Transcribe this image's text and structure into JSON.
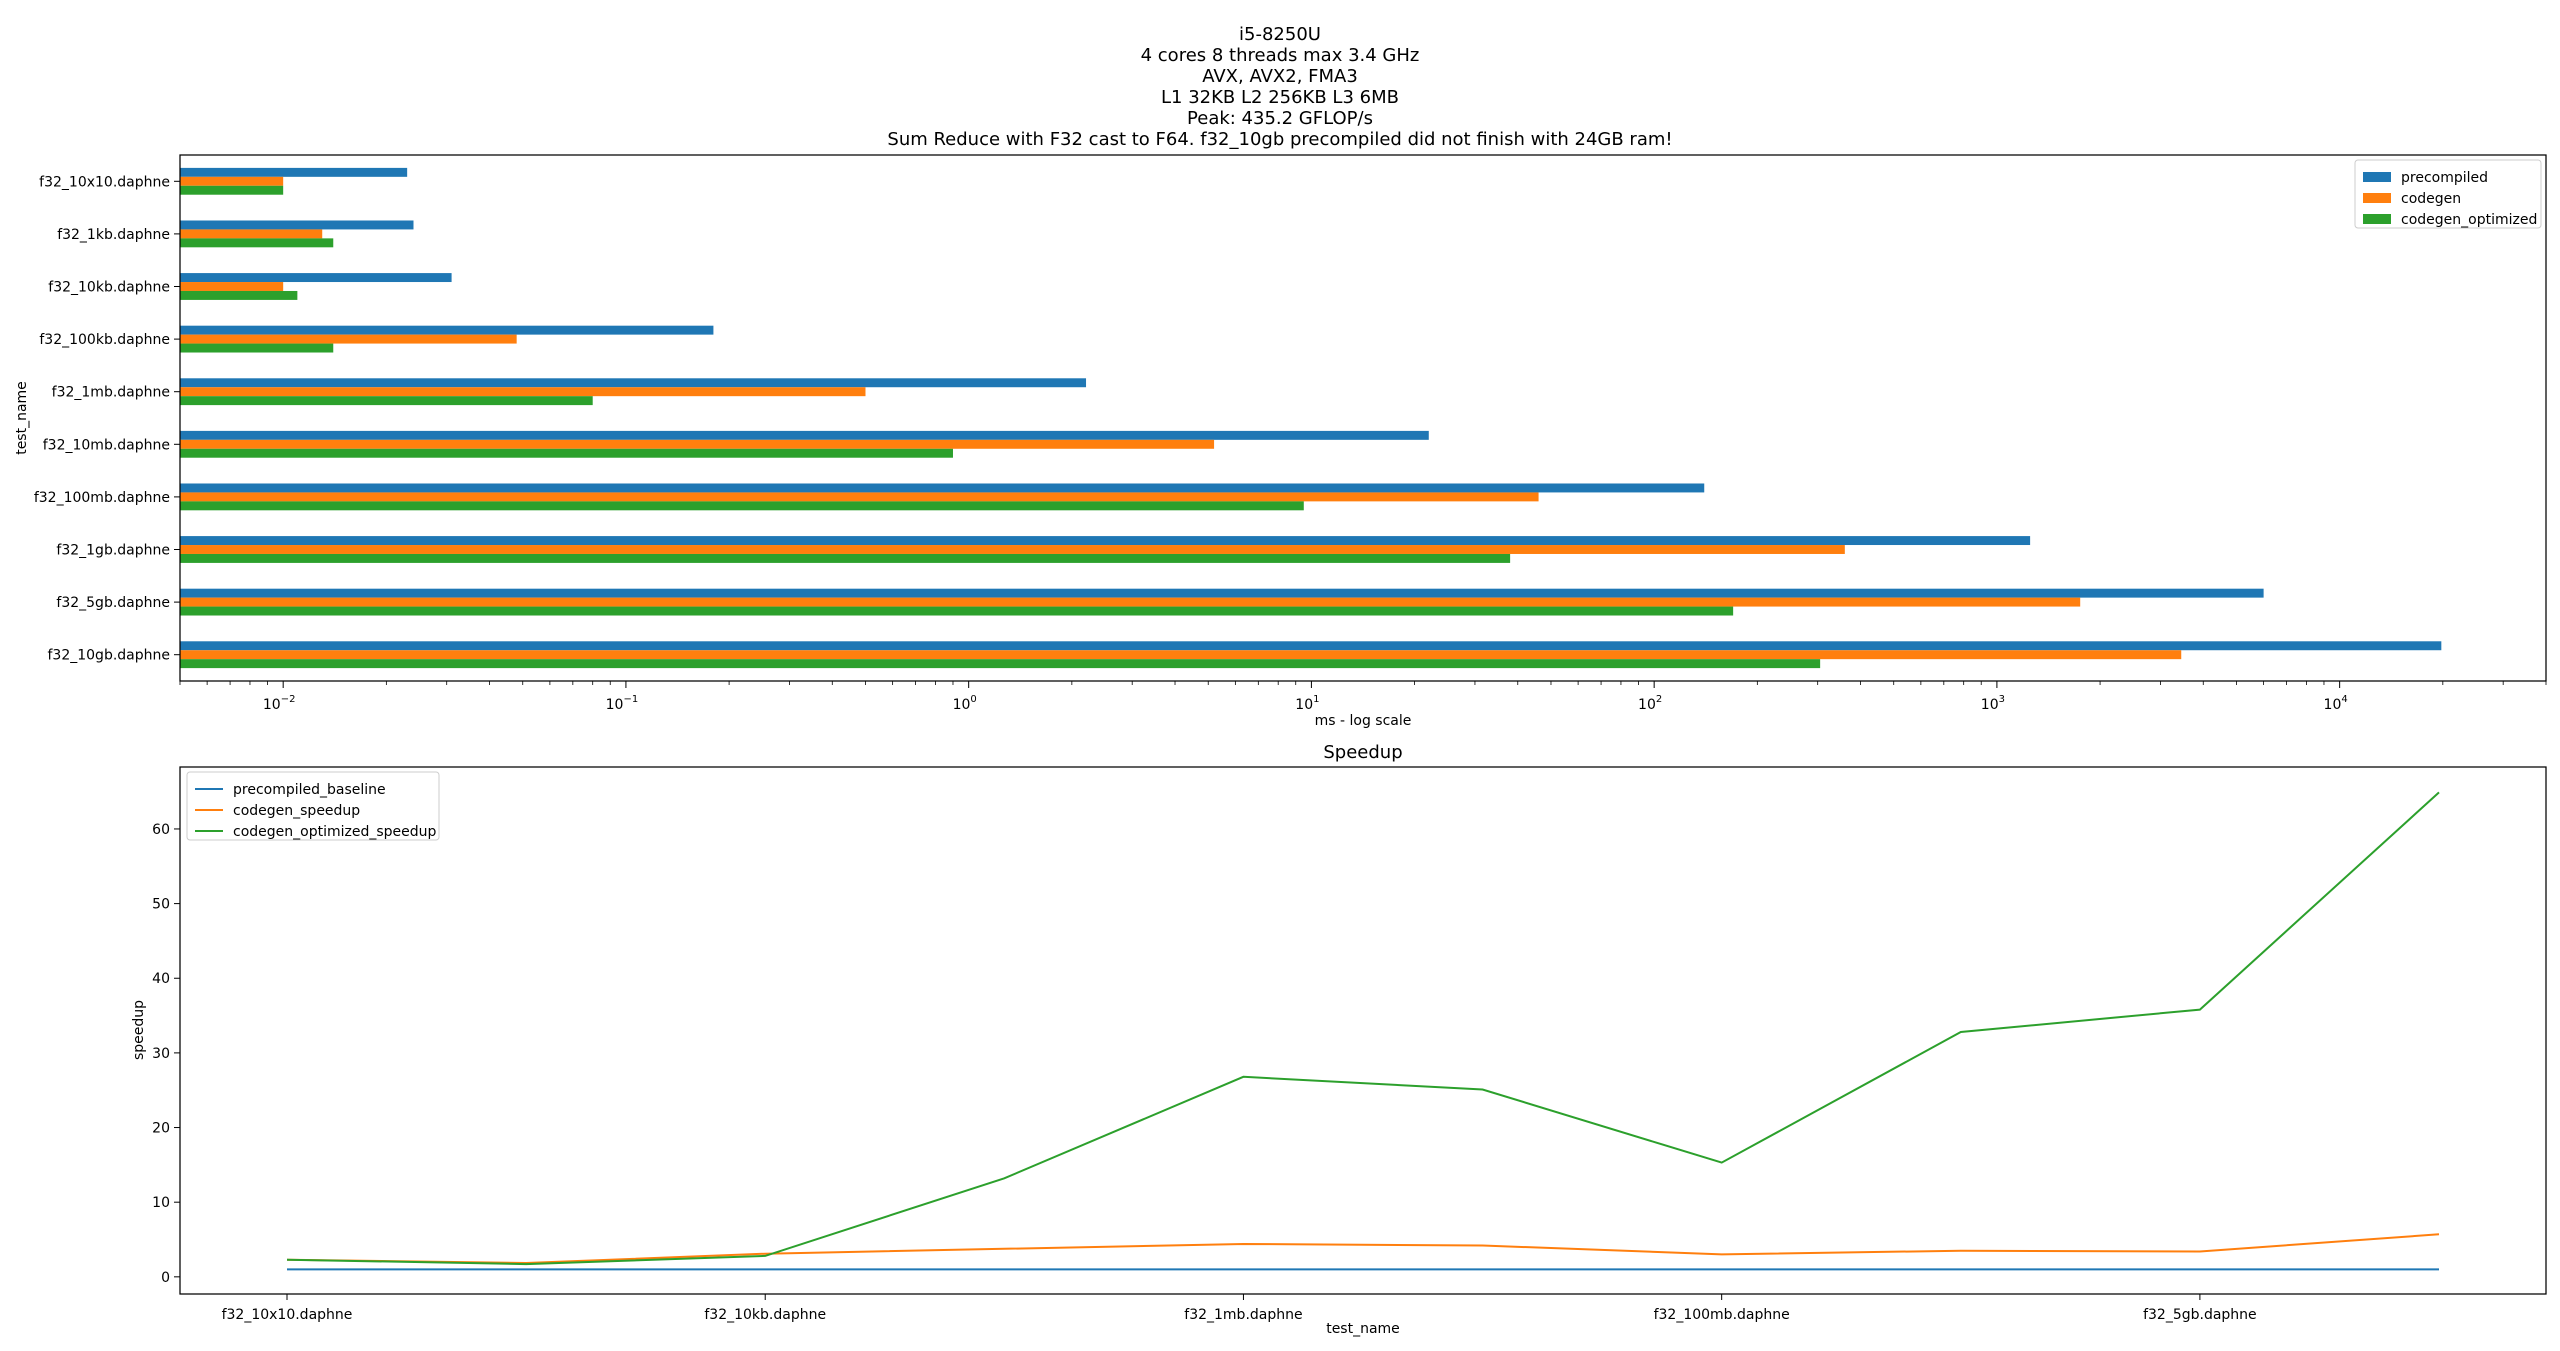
{
  "chart_data": [
    {
      "type": "bar",
      "orientation": "horizontal",
      "title_lines": [
        "i5-8250U",
        "4 cores 8 threads max 3.4 GHz",
        "AVX, AVX2, FMA3",
        "L1 32KB L2 256KB L3 6MB",
        "Peak: 435.2 GFLOP/s",
        "Sum Reduce with F32 cast to F64. f32_10gb precompiled did not finish with 24GB ram!"
      ],
      "xlabel": "ms - log scale",
      "ylabel": "test_name",
      "xscale": "log",
      "xlim": [
        0.005,
        40000
      ],
      "xticks": [
        {
          "value": 0.01,
          "base": "10",
          "exp": "−2"
        },
        {
          "value": 0.1,
          "base": "10",
          "exp": "−1"
        },
        {
          "value": 1,
          "base": "10",
          "exp": "0"
        },
        {
          "value": 10,
          "base": "10",
          "exp": "1"
        },
        {
          "value": 100,
          "base": "10",
          "exp": "2"
        },
        {
          "value": 1000,
          "base": "10",
          "exp": "3"
        },
        {
          "value": 10000,
          "base": "10",
          "exp": "4"
        }
      ],
      "categories": [
        "f32_10x10.daphne",
        "f32_1kb.daphne",
        "f32_10kb.daphne",
        "f32_100kb.daphne",
        "f32_1mb.daphne",
        "f32_10mb.daphne",
        "f32_100mb.daphne",
        "f32_1gb.daphne",
        "f32_5gb.daphne",
        "f32_10gb.daphne"
      ],
      "series": [
        {
          "name": "precompiled",
          "color": "#1f77b4",
          "values": [
            0.023,
            0.024,
            0.031,
            0.18,
            2.2,
            22,
            140,
            1250,
            6000,
            19800
          ]
        },
        {
          "name": "codegen",
          "color": "#ff7f0e",
          "values": [
            0.01,
            0.013,
            0.01,
            0.048,
            0.5,
            5.2,
            46,
            360,
            1750,
            3450
          ]
        },
        {
          "name": "codegen_optimized",
          "color": "#2ca02c",
          "values": [
            0.01,
            0.014,
            0.011,
            0.014,
            0.08,
            0.9,
            9.5,
            38,
            170,
            305
          ]
        }
      ],
      "legend": "upper right",
      "grid": false
    },
    {
      "type": "line",
      "title": "Speedup",
      "xlabel": "test_name",
      "ylabel": "speedup",
      "ylim": [
        -2.3,
        68.3
      ],
      "yticks": [
        0,
        10,
        20,
        30,
        40,
        50,
        60
      ],
      "x": [
        "f32_10x10.daphne",
        "f32_1kb.daphne",
        "f32_10kb.daphne",
        "f32_100kb.daphne",
        "f32_1mb.daphne",
        "f32_10mb.daphne",
        "f32_100mb.daphne",
        "f32_1gb.daphne",
        "f32_5gb.daphne",
        "f32_10gb.daphne"
      ],
      "xtick_labels_shown": [
        "f32_10x10.daphne",
        "f32_10kb.daphne",
        "f32_1mb.daphne",
        "f32_100mb.daphne",
        "f32_5gb.daphne"
      ],
      "series": [
        {
          "name": "precompiled_baseline",
          "color": "#1f77b4",
          "values": [
            1,
            1,
            1,
            1,
            1,
            1,
            1,
            1,
            1,
            1
          ]
        },
        {
          "name": "codegen_speedup",
          "color": "#ff7f0e",
          "values": [
            2.3,
            1.85,
            3.1,
            3.75,
            4.4,
            4.2,
            3.0,
            3.5,
            3.4,
            5.7
          ]
        },
        {
          "name": "codegen_optimized_speedup",
          "color": "#2ca02c",
          "values": [
            2.3,
            1.7,
            2.8,
            13.2,
            26.8,
            25.1,
            15.3,
            32.8,
            35.8,
            64.9
          ]
        }
      ],
      "legend": "upper left",
      "grid": false
    }
  ]
}
